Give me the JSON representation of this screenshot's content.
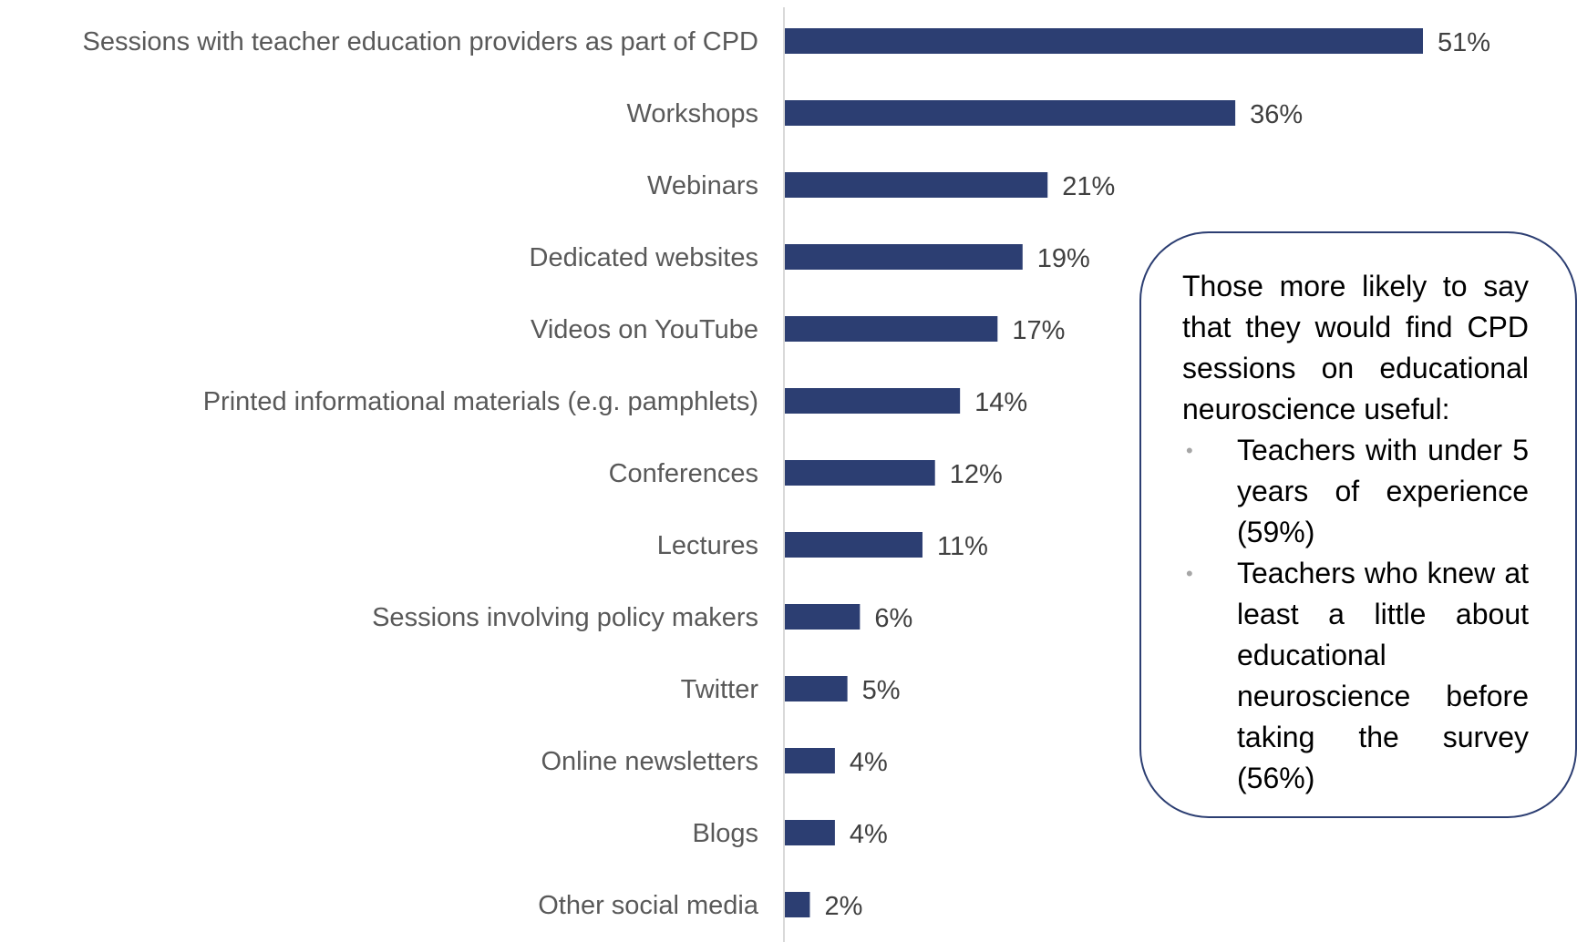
{
  "chart_data": {
    "type": "bar",
    "orientation": "horizontal",
    "categories": [
      "Sessions with teacher education providers as part of CPD",
      "Workshops",
      "Webinars",
      "Dedicated websites",
      "Videos on YouTube",
      "Printed informational materials (e.g. pamphlets)",
      "Conferences",
      "Lectures",
      "Sessions involving policy makers",
      "Twitter",
      "Online newsletters",
      "Blogs",
      "Other social media"
    ],
    "values": [
      51,
      36,
      21,
      19,
      17,
      14,
      12,
      11,
      6,
      5,
      4,
      4,
      2
    ],
    "value_labels": [
      "51%",
      "36%",
      "21%",
      "19%",
      "17%",
      "14%",
      "12%",
      "11%",
      "6%",
      "5%",
      "4%",
      "4%",
      "2%"
    ],
    "unit": "%",
    "bar_color": "#2c3e72",
    "xlim": [
      0,
      51
    ],
    "grid": false,
    "legend": "none"
  },
  "callout": {
    "intro": "Those more likely to say that they would find CPD sessions on educational neuroscience useful:",
    "items": [
      "Teachers with under 5 years of experience (59%)",
      "Teachers who knew at least a little about educational neuroscience before taking the survey (56%)"
    ],
    "border_color": "#2c3e72"
  }
}
